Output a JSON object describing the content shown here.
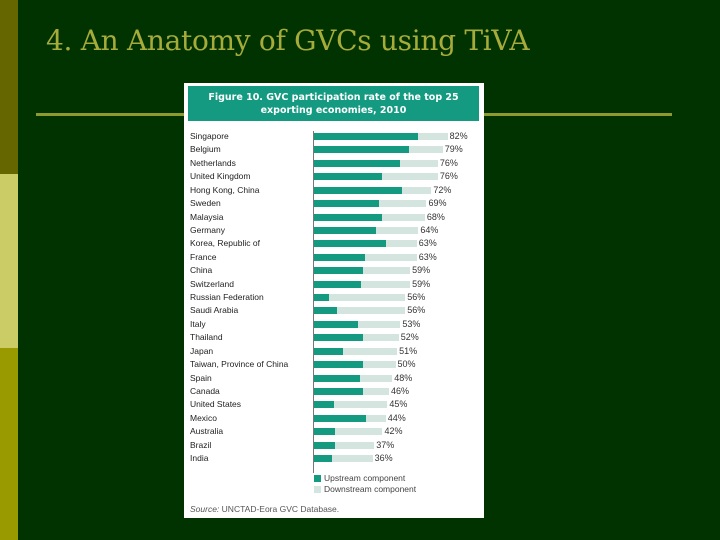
{
  "slide": {
    "title": "4. An Anatomy of GVCs using Ti​VA",
    "colors": {
      "background": "#003300",
      "title": "#a6ab3a",
      "rule": "#8f9a2e",
      "stripe_top": "#666600",
      "stripe_middle": "#cccc66",
      "stripe_bottom": "#999900"
    }
  },
  "figure": {
    "title_line1": "Figure 10. GVC participation rate of the top 25",
    "title_line2": "exporting economies, 2010",
    "legend": {
      "upstream": "Upstream component",
      "downstream": "Downstream component"
    },
    "source_label": "Source:",
    "source_text": "UNCTAD-Eora GVC Database.",
    "colors": {
      "upstream": "#139a80",
      "downstream": "#d4e4de",
      "header": "#139a80"
    }
  },
  "chart_data": {
    "type": "bar",
    "orientation": "horizontal",
    "stacked": true,
    "title": "Figure 10. GVC participation rate of the top 25 exporting economies, 2010",
    "xlabel": "",
    "ylabel": "",
    "categories": [
      "Singapore",
      "Belgium",
      "Netherlands",
      "United Kingdom",
      "Hong Kong, China",
      "Sweden",
      "Malaysia",
      "Germany",
      "Korea, Republic of",
      "France",
      "China",
      "Switzerland",
      "Russian Federation",
      "Saudi Arabia",
      "Italy",
      "Thailand",
      "Japan",
      "Taiwan, Province of China",
      "Spain",
      "Canada",
      "United States",
      "Mexico",
      "Australia",
      "Brazil",
      "India"
    ],
    "totals": [
      82,
      79,
      76,
      76,
      72,
      69,
      68,
      64,
      63,
      63,
      59,
      59,
      56,
      56,
      53,
      52,
      51,
      50,
      48,
      46,
      45,
      44,
      42,
      37,
      36
    ],
    "total_labels": [
      "82%",
      "79%",
      "76%",
      "76%",
      "72%",
      "69%",
      "68%",
      "64%",
      "63%",
      "63%",
      "59%",
      "59%",
      "56%",
      "56%",
      "53%",
      "52%",
      "51%",
      "50%",
      "48%",
      "46%",
      "45%",
      "44%",
      "42%",
      "37%",
      "36%"
    ],
    "series": [
      {
        "name": "Upstream component",
        "values": [
          64,
          58,
          53,
          42,
          54,
          40,
          42,
          38,
          44,
          31,
          30,
          29,
          9,
          14,
          27,
          30,
          18,
          30,
          28,
          30,
          12,
          32,
          13,
          13,
          11
        ]
      },
      {
        "name": "Downstream component",
        "values": [
          18,
          21,
          23,
          34,
          18,
          29,
          26,
          26,
          19,
          32,
          29,
          30,
          47,
          42,
          26,
          22,
          33,
          20,
          20,
          16,
          33,
          12,
          29,
          24,
          25
        ]
      }
    ],
    "legend_position": "bottom",
    "grid": false,
    "xlim": [
      0,
      100
    ]
  }
}
